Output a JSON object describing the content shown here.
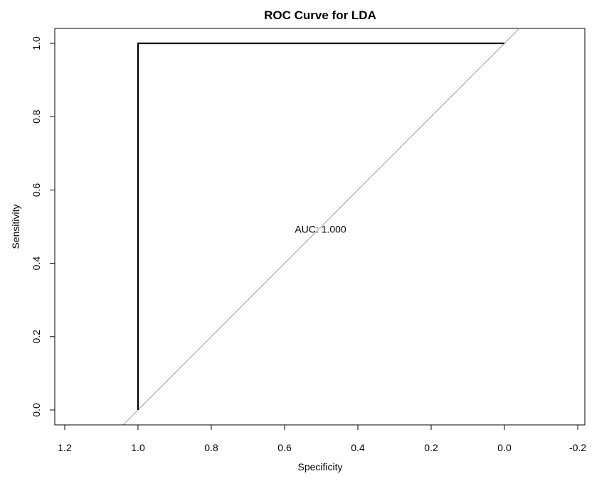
{
  "chart_data": {
    "type": "line",
    "title": "ROC Curve for LDA",
    "xlabel": "Specificity",
    "ylabel": "Sensitivity",
    "xlim": [
      1.2,
      -0.2
    ],
    "ylim": [
      0.0,
      1.0
    ],
    "x_reversed": true,
    "grid": false,
    "legend": "none",
    "x_ticks": [
      1.2,
      1.0,
      0.8,
      0.6,
      0.4,
      0.2,
      0.0,
      -0.2
    ],
    "x_tick_labels": [
      "1.2",
      "1.0",
      "0.8",
      "0.6",
      "0.4",
      "0.2",
      "0.0",
      "-0.2"
    ],
    "y_ticks": [
      0.0,
      0.2,
      0.4,
      0.6,
      0.8,
      1.0
    ],
    "y_tick_labels": [
      "0.0",
      "0.2",
      "0.4",
      "0.6",
      "0.8",
      "1.0"
    ],
    "series": [
      {
        "x": [
          1.0,
          1.0,
          0.0
        ],
        "y": [
          0.0,
          1.0,
          1.0
        ],
        "color": "#000000"
      }
    ],
    "reference_line": {
      "intercept": 1,
      "slope": -1,
      "color": "#9e9e9e"
    },
    "annotations": [
      {
        "text": "AUC: 1.000",
        "x": 0.5,
        "y": 0.48
      }
    ]
  }
}
